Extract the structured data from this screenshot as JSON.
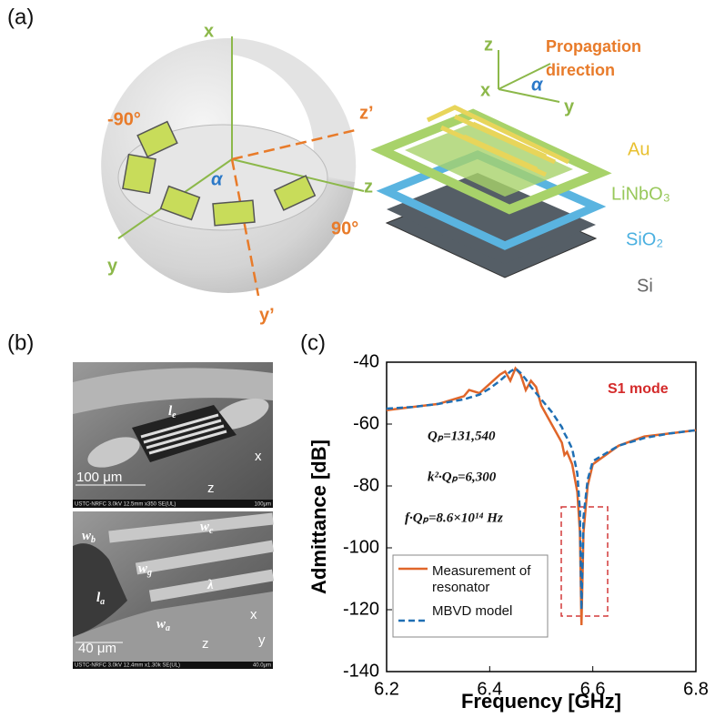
{
  "panel_labels": [
    "(a)",
    "(b)",
    "(c)"
  ],
  "panel_a": {
    "sphere_labels": [
      "x",
      "y",
      "z",
      "z’",
      "y’",
      "-90°",
      "90°",
      "α"
    ],
    "propagation": "Propagation direction",
    "small_axes": [
      "z",
      "x",
      "y",
      "α"
    ],
    "layers": [
      "Au",
      "LiNbO₃",
      "SiO₂",
      "Si"
    ]
  },
  "panel_b": {
    "top": {
      "labels": [
        {
          "text": "l",
          "sub": "e"
        }
      ],
      "scale": "100 μm",
      "axes": [
        "x",
        "z"
      ],
      "footer": "USTC-NRFC 3.0kV 12.5mm x350 SE(UL)",
      "footer_scale": "100μm"
    },
    "bottom": {
      "labels": [
        {
          "text": "w",
          "sub": "b"
        },
        {
          "text": "w",
          "sub": "c"
        },
        {
          "text": "w",
          "sub": "g"
        },
        {
          "text": "λ",
          "sub": ""
        },
        {
          "text": "l",
          "sub": "a"
        },
        {
          "text": "w",
          "sub": "a"
        }
      ],
      "scale": "40 μm",
      "axes": [
        "x",
        "z",
        "y"
      ],
      "footer": "USTC-NRFC 3.0kV 12.4mm x1.30k SE(UL)",
      "footer_scale": "40.0μm"
    }
  },
  "chart_data": {
    "type": "line",
    "x_label": "Frequency [GHz]",
    "y_label": "Admittance [dB]",
    "annotations": [
      "S1 mode",
      "Qₚ=131,540",
      "k²·Qₚ=6,300",
      "f·Qₚ=8.6×10¹⁴ Hz"
    ],
    "x": [
      6.2,
      6.25,
      6.3,
      6.35,
      6.36,
      6.38,
      6.4,
      6.42,
      6.43,
      6.44,
      6.45,
      6.46,
      6.47,
      6.48,
      6.49,
      6.5,
      6.52,
      6.54,
      6.545,
      6.55,
      6.56,
      6.57,
      6.575,
      6.578,
      6.582,
      6.59,
      6.6,
      6.65,
      6.7,
      6.75,
      6.8
    ],
    "series": [
      {
        "name": "Measurement of resonator",
        "color": "#e0662a",
        "dash": false,
        "values": [
          -55.5,
          -54.5,
          -53.5,
          -51,
          -49,
          -50,
          -47,
          -44,
          -43,
          -46,
          -42,
          -44,
          -49,
          -46,
          -48,
          -54,
          -60,
          -66,
          -70,
          -69,
          -73,
          -82,
          -95,
          -125,
          -95,
          -80,
          -73,
          -67,
          -64,
          -63,
          -62
        ]
      },
      {
        "name": "MBVD model",
        "color": "#1f6fb4",
        "dash": true,
        "values": [
          -55,
          -54.5,
          -53.5,
          -52,
          -51.5,
          -50.5,
          -48.5,
          -46,
          -44.5,
          -43,
          -42,
          -43.5,
          -45.5,
          -48,
          -50,
          -52,
          -56,
          -61,
          -63,
          -64.5,
          -68,
          -76,
          -88,
          -120,
          -90,
          -78,
          -72,
          -67,
          -64.5,
          -63,
          -62
        ]
      }
    ],
    "xlim": [
      6.2,
      6.8
    ],
    "xticks": [
      6.2,
      6.4,
      6.6,
      6.8
    ],
    "ylim": [
      -140,
      -40
    ],
    "yticks": [
      -140,
      -120,
      -100,
      -80,
      -60,
      -40
    ],
    "grid": false,
    "legend": "lower left"
  }
}
